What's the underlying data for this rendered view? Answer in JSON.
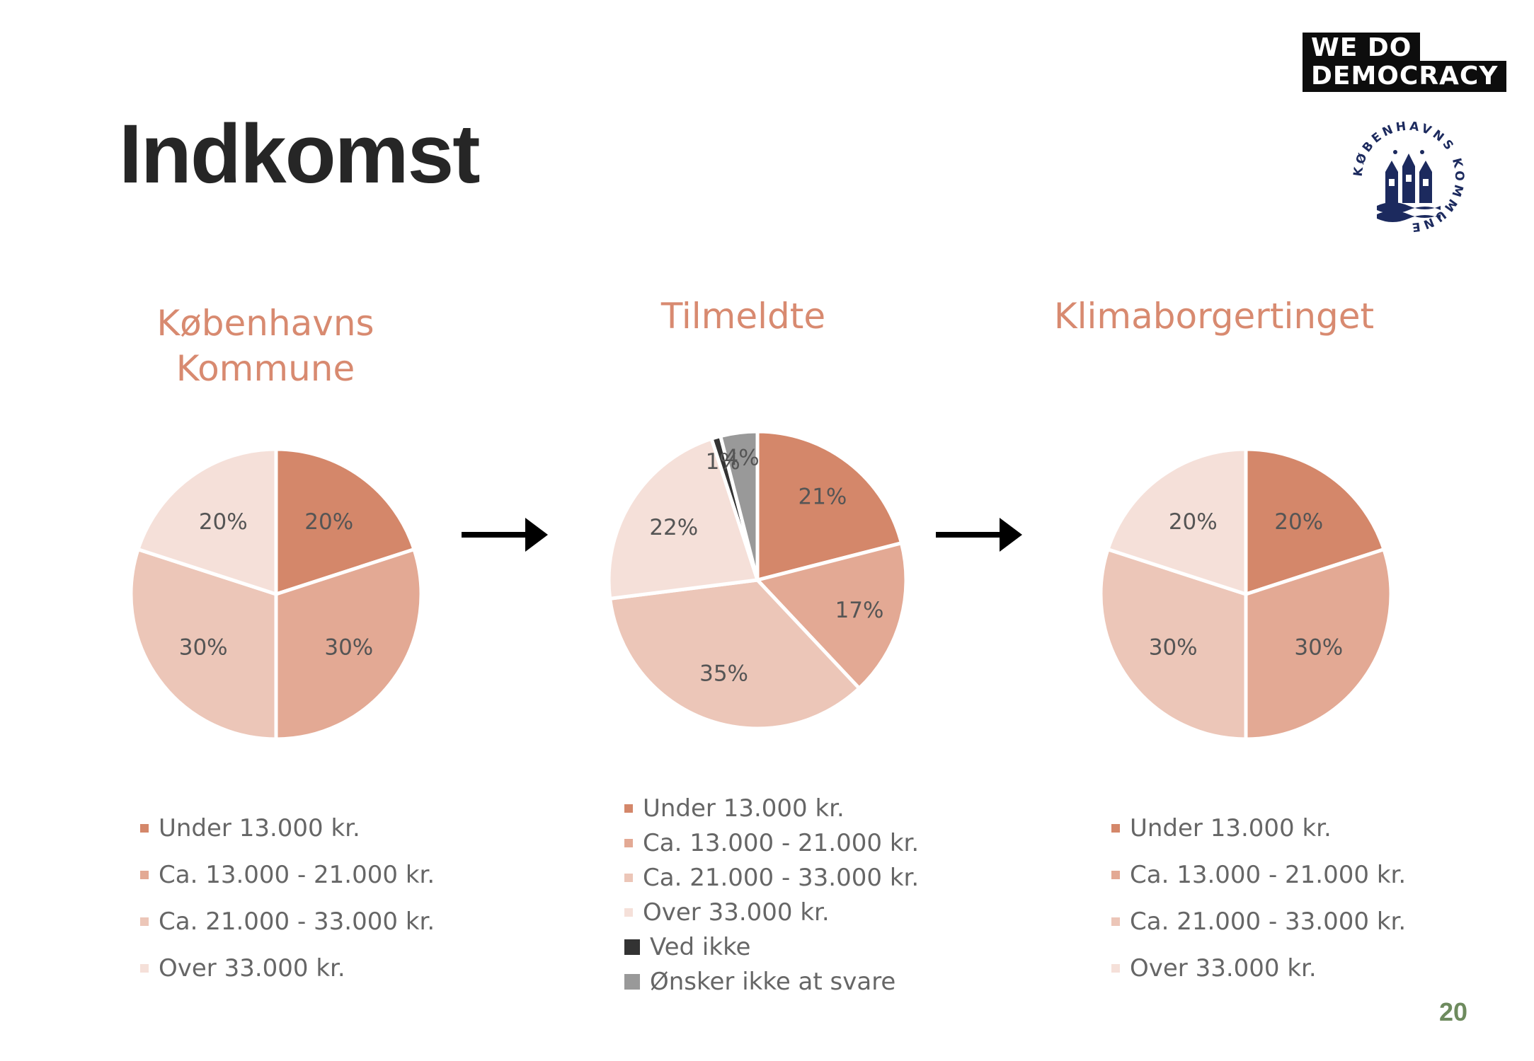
{
  "slide": {
    "title": "Indkomst",
    "page_number": "20"
  },
  "logos": {
    "wdd_line1": "WE  DO",
    "wdd_line2": "DEMOCRACY",
    "kk_text": "KØBENHAVNS KOMMUNE"
  },
  "colors": {
    "under13": "#d4876a",
    "c13_21": "#e3a994",
    "c21_33": "#ecc6b8",
    "over33": "#f5e0d9",
    "ved_ikke": "#333333",
    "onsker_ikke": "#999999",
    "title_color": "#d88a70"
  },
  "chart_data": [
    {
      "type": "pie",
      "title": "Københavns Kommune",
      "categories": [
        "Under 13.000 kr.",
        "Ca. 13.000 - 21.000 kr.",
        "Ca. 21.000 - 33.000 kr.",
        "Over 33.000 kr."
      ],
      "values": [
        20,
        30,
        30,
        20
      ],
      "labels": [
        "20%",
        "30%",
        "30%",
        "20%"
      ],
      "legend_position": "bottom"
    },
    {
      "type": "pie",
      "title": "Tilmeldte",
      "categories": [
        "Under 13.000 kr.",
        "Ca. 13.000 - 21.000 kr.",
        "Ca. 21.000 - 33.000 kr.",
        "Over 33.000 kr.",
        "Ved ikke",
        "Ønsker ikke at svare"
      ],
      "values": [
        21,
        17,
        35,
        22,
        1,
        4
      ],
      "labels": [
        "21%",
        "17%",
        "35%",
        "22%",
        "1%",
        "4%"
      ],
      "legend_position": "bottom"
    },
    {
      "type": "pie",
      "title": "Klimaborgertinget",
      "categories": [
        "Under 13.000 kr.",
        "Ca. 13.000 - 21.000 kr.",
        "Ca. 21.000 - 33.000 kr.",
        "Over 33.000 kr."
      ],
      "values": [
        20,
        30,
        30,
        20
      ],
      "labels": [
        "20%",
        "30%",
        "30%",
        "20%"
      ],
      "legend_position": "bottom"
    }
  ]
}
